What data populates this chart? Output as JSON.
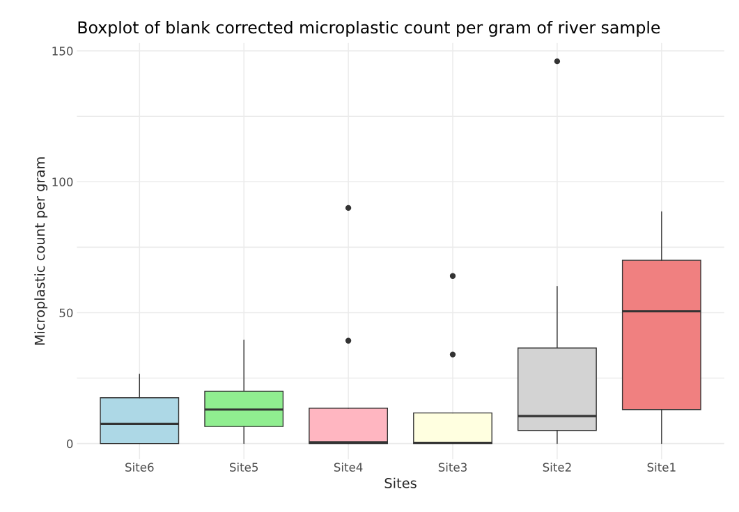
{
  "chart_data": {
    "type": "box",
    "title": "Boxplot of blank corrected microplastic count per gram of river sample",
    "xlabel": "Sites",
    "ylabel": "Microplastic count per gram",
    "categories": [
      "Site6",
      "Site5",
      "Site4",
      "Site3",
      "Site2",
      "Site1"
    ],
    "colors": [
      "#add8e6",
      "#90ee90",
      "#ffb6c1",
      "#ffffe0",
      "#d3d3d3",
      "#f08080"
    ],
    "boxes": [
      {
        "low": 0,
        "q1": 0,
        "median": 7.5,
        "q3": 17.5,
        "high": 26.5
      },
      {
        "low": 0,
        "q1": 6.5,
        "median": 13,
        "q3": 20,
        "high": 39.5
      },
      {
        "low": 0,
        "q1": 0,
        "median": 0.5,
        "q3": 13.5,
        "high": 13.5,
        "outliers": [
          39.3,
          90
        ]
      },
      {
        "low": 0,
        "q1": 0,
        "median": 0.3,
        "q3": 11.7,
        "high": 11.7,
        "outliers": [
          34,
          64
        ]
      },
      {
        "low": 0,
        "q1": 5,
        "median": 10.5,
        "q3": 36.5,
        "high": 60,
        "outliers": [
          146
        ]
      },
      {
        "low": 0,
        "q1": 13,
        "median": 50.5,
        "q3": 70,
        "high": 88.5
      }
    ],
    "ylim": [
      -6,
      153
    ],
    "yticks": [
      0,
      {
        "value": 25,
        "label": null
      },
      50,
      {
        "value": 75,
        "label": null
      },
      100,
      {
        "value": 125,
        "label": null
      },
      150
    ],
    "grid": true
  }
}
